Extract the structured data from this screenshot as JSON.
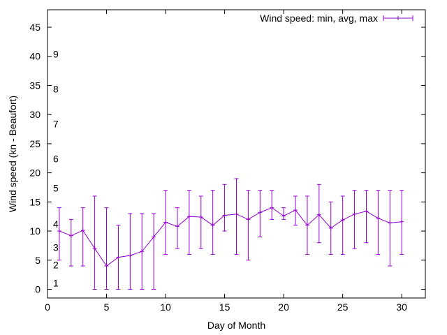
{
  "chart_data": {
    "type": "line",
    "xlabel": "Day of Month",
    "ylabel": "Wind speed (kn - Beaufort)",
    "xlim": [
      0,
      32
    ],
    "ylim": [
      -1.5,
      48
    ],
    "xticks": [
      0,
      5,
      10,
      15,
      20,
      25,
      30
    ],
    "yticks": [
      0,
      5,
      10,
      15,
      20,
      25,
      30,
      35,
      40,
      45
    ],
    "legend_position": "top-right",
    "grid": false,
    "series": [
      {
        "name": "Wind speed: min, avg, max",
        "color": "#9400d3",
        "x": [
          1,
          2,
          3,
          4,
          5,
          6,
          7,
          8,
          9,
          10,
          11,
          12,
          13,
          14,
          15,
          16,
          17,
          18,
          19,
          20,
          21,
          22,
          23,
          24,
          25,
          26,
          27,
          28,
          29,
          30
        ],
        "avg": [
          10,
          9.2,
          10.1,
          7,
          4,
          5.5,
          5.8,
          6.5,
          9,
          11.5,
          10.8,
          12.5,
          12.4,
          11,
          12.7,
          12.9,
          12,
          13.2,
          14,
          12.6,
          13.6,
          11,
          12.8,
          10.5,
          11.9,
          12.9,
          13.4,
          12.2,
          11.4,
          11.6
        ],
        "min": [
          5,
          4,
          4,
          0,
          0,
          0,
          0,
          0,
          0,
          6,
          7,
          6,
          7,
          6,
          10,
          6,
          5,
          9,
          12,
          12,
          11,
          6,
          8,
          6,
          6,
          7,
          8,
          6,
          4,
          6
        ],
        "max": [
          14,
          12,
          14,
          16,
          14,
          11,
          13,
          13,
          13,
          17,
          14,
          17,
          16,
          17,
          18,
          19,
          17,
          17,
          17,
          14,
          16,
          16,
          18,
          15,
          16,
          17,
          17,
          17,
          17,
          17
        ]
      }
    ],
    "beaufort_labels": [
      {
        "label": "1",
        "y": 1.1
      },
      {
        "label": "2",
        "y": 4.2
      },
      {
        "label": "3",
        "y": 7.2
      },
      {
        "label": "4",
        "y": 11.2
      },
      {
        "label": "5",
        "y": 17.4
      },
      {
        "label": "6",
        "y": 22.4
      },
      {
        "label": "7",
        "y": 28.4
      },
      {
        "label": "8",
        "y": 34.4
      },
      {
        "label": "9",
        "y": 40.4
      }
    ]
  }
}
